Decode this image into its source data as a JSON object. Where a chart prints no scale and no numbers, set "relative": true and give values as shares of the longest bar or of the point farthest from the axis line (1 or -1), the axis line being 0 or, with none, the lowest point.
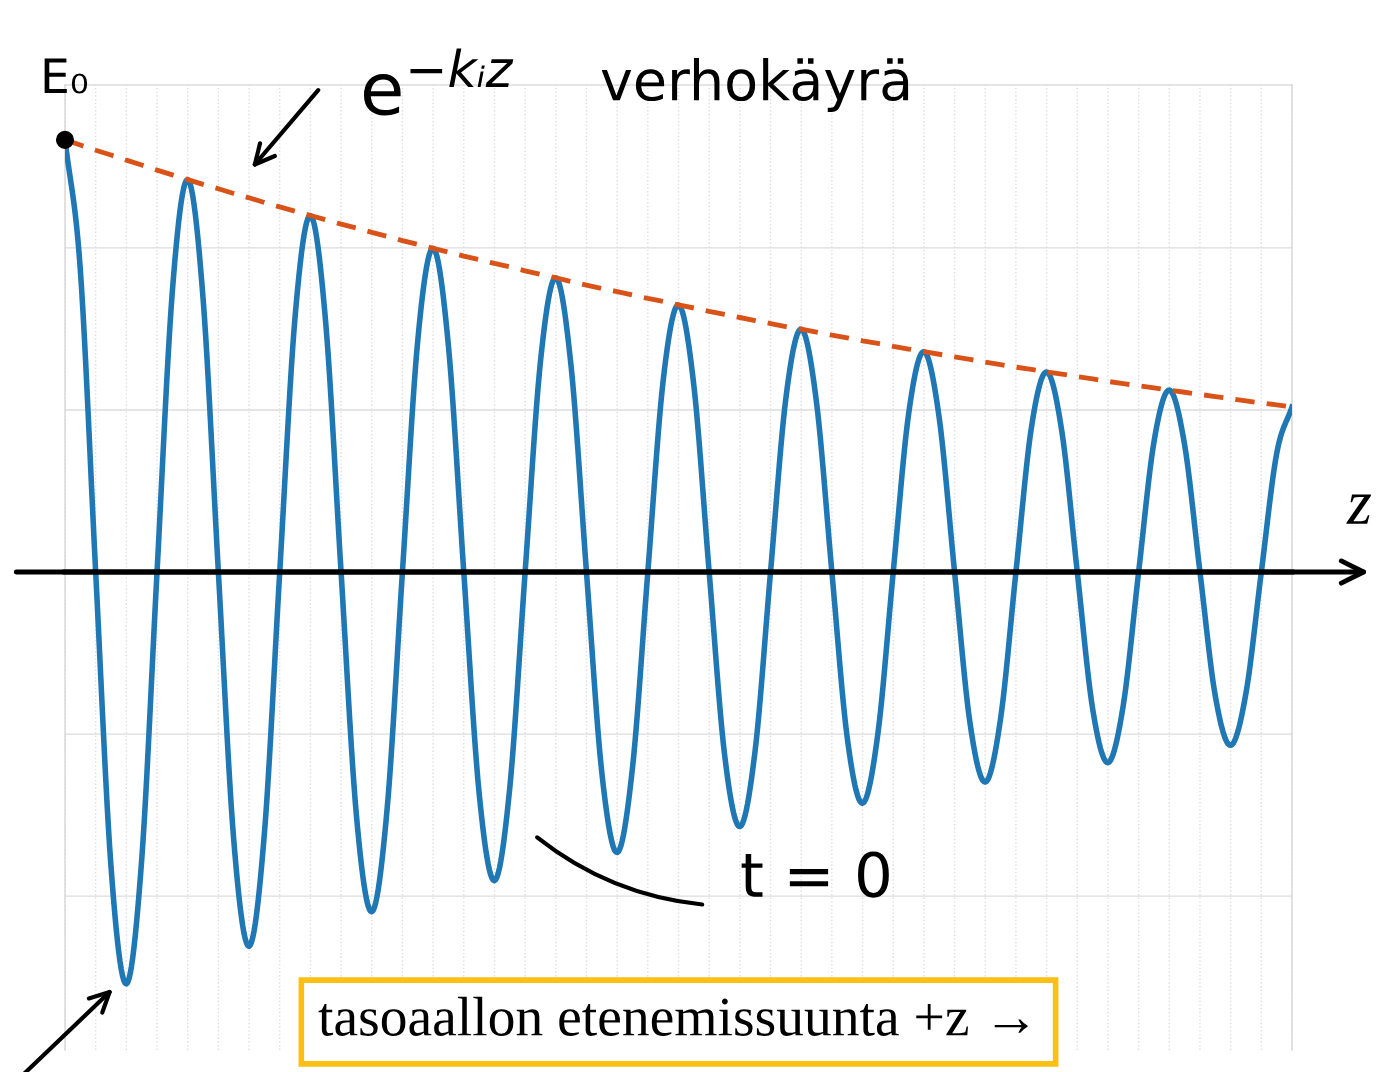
{
  "chart_data": {
    "type": "line",
    "relative": true,
    "xlabel": "z",
    "grid": true,
    "legend": false,
    "marker": "none",
    "categories": [
      null,
      null,
      null,
      null,
      null,
      null,
      null,
      null,
      null,
      null,
      null,
      null,
      null,
      null,
      null,
      null,
      null,
      null,
      null,
      null,
      null,
      null,
      null,
      null,
      null,
      null,
      null,
      null,
      null,
      null,
      null,
      null,
      null,
      null,
      null,
      null,
      null,
      null,
      null,
      null,
      null,
      null,
      null,
      null,
      null,
      null,
      null,
      null,
      null,
      null,
      null,
      null,
      null,
      null,
      null,
      null,
      null,
      null,
      null,
      null,
      null,
      null,
      null,
      null,
      null,
      null,
      null,
      null,
      null,
      null,
      null,
      null,
      null,
      null,
      null,
      null,
      null,
      null,
      null,
      null,
      null
    ],
    "series": [
      {
        "color": "#1f77b4",
        "line_style": "solid",
        "values": [
          1,
          0.699,
          0,
          -0.682,
          -0.953,
          -0.666,
          0,
          0.65,
          0.908,
          0.634,
          0,
          -0.619,
          -0.866,
          -0.605,
          0,
          0.59,
          0.825,
          0.576,
          0,
          -0.563,
          -0.786,
          -0.549,
          0,
          0.536,
          0.749,
          0.523,
          0,
          -0.511,
          -0.714,
          -0.499,
          0,
          0.487,
          0.681,
          0.475,
          0,
          -0.464,
          -0.649,
          -0.453,
          0,
          0.443,
          0.618,
          0.432,
          0,
          -0.421,
          -0.589,
          -0.412,
          0,
          0.402,
          0.562,
          0.392,
          0,
          -0.383,
          -0.535,
          -0.374,
          0,
          0.365,
          0.51,
          0.356,
          0,
          -0.348,
          -0.486,
          -0.339,
          0,
          0.332,
          0.463,
          0.324,
          0,
          -0.316,
          -0.441,
          -0.308,
          0,
          0.301,
          0.421,
          0.294,
          0,
          -0.287,
          -0.401,
          -0.28,
          0,
          0.274,
          0.382
        ]
      },
      {
        "color": "#d95319",
        "line_style": "dashed",
        "values": [
          1.0,
          0.988,
          0.976,
          0.965,
          0.953,
          0.942,
          0.93,
          0.919,
          0.908,
          0.897,
          0.887,
          0.876,
          0.866,
          0.855,
          0.845,
          0.835,
          0.825,
          0.815,
          0.805,
          0.796,
          0.786,
          0.777,
          0.767,
          0.758,
          0.749,
          0.74,
          0.731,
          0.723,
          0.714,
          0.706,
          0.697,
          0.689,
          0.681,
          0.672,
          0.664,
          0.656,
          0.649,
          0.641,
          0.633,
          0.626,
          0.618,
          0.611,
          0.603,
          0.596,
          0.589,
          0.582,
          0.575,
          0.568,
          0.562,
          0.555,
          0.548,
          0.542,
          0.535,
          0.529,
          0.522,
          0.516,
          0.51,
          0.504,
          0.498,
          0.492,
          0.486,
          0.48,
          0.474,
          0.469,
          0.463,
          0.458,
          0.452,
          0.447,
          0.441,
          0.436,
          0.431,
          0.426,
          0.421,
          0.416,
          0.411,
          0.406,
          0.401,
          0.396,
          0.391,
          0.387,
          0.382
        ]
      }
    ],
    "annotations": [
      "E₀",
      "e$^{−kᵢz}$",
      "verhokäyrä",
      "t = 0",
      "tasoaallon etenemissuunta +z →"
    ]
  }
}
